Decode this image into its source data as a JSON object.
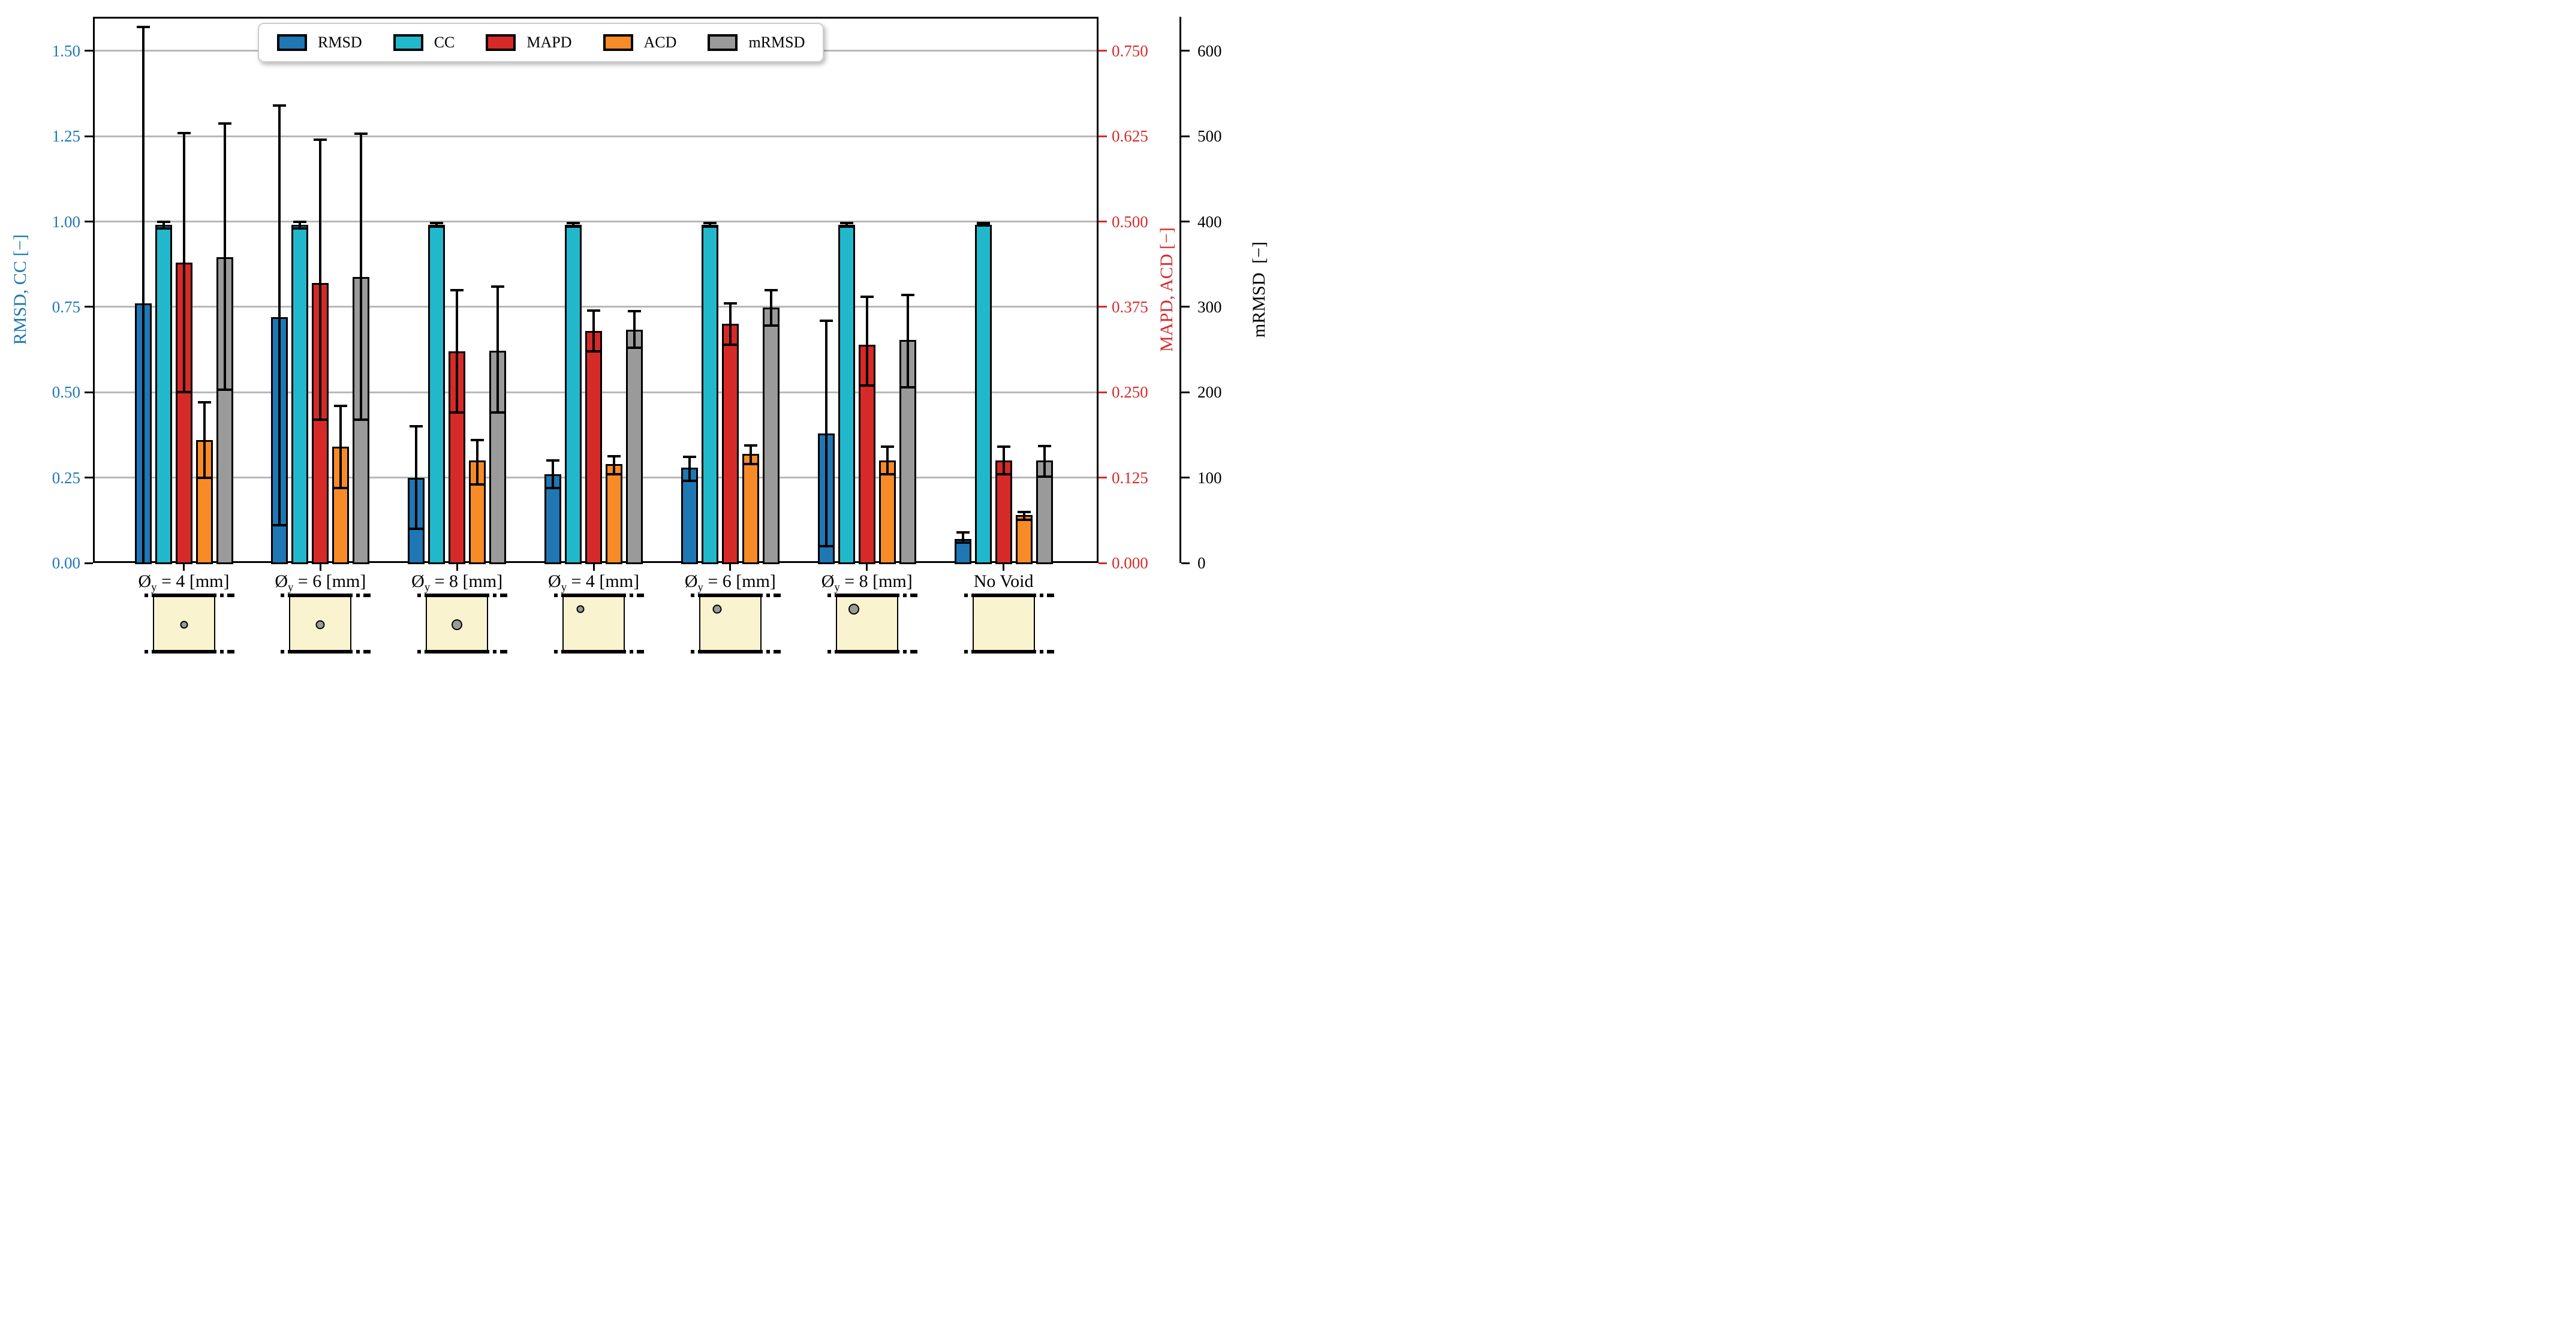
{
  "figure": {
    "background": "#ffffff",
    "description": "Grouped bar chart with error bars comparing reconstruction metrics for specimens with voids of different diameters and positions"
  },
  "legend": {
    "items": [
      {
        "label": "RMSD",
        "color": "#1f77b4"
      },
      {
        "label": "CC",
        "color": "#22b8cc"
      },
      {
        "label": "MAPD",
        "color": "#d62a28"
      },
      {
        "label": "ACD",
        "color": "#f78b28"
      },
      {
        "label": "mRMSD",
        "color": "#9a9a9a"
      }
    ]
  },
  "specimen_diagrams": {
    "fill_color": "#faf3d0",
    "void_color": "#9a9a9a",
    "items": [
      {
        "void_position": "middle",
        "void_diameter_mm": 4
      },
      {
        "void_position": "middle",
        "void_diameter_mm": 6
      },
      {
        "void_position": "middle",
        "void_diameter_mm": 8
      },
      {
        "void_position": "top",
        "void_diameter_mm": 4
      },
      {
        "void_position": "top",
        "void_diameter_mm": 6
      },
      {
        "void_position": "top",
        "void_diameter_mm": 8
      },
      {
        "void_position": "none",
        "void_diameter_mm": 0
      }
    ]
  },
  "chart_data": {
    "type": "bar",
    "title": "",
    "grid": true,
    "legend_position": "top-center",
    "categories": [
      {
        "prefix": "Ø",
        "sub": "y",
        "rest": " = 4 [mm]"
      },
      {
        "prefix": "Ø",
        "sub": "y",
        "rest": " = 6 [mm]"
      },
      {
        "prefix": "Ø",
        "sub": "y",
        "rest": " = 8 [mm]"
      },
      {
        "prefix": "Ø",
        "sub": "y",
        "rest": " = 4 [mm]"
      },
      {
        "prefix": "Ø",
        "sub": "y",
        "rest": " = 6 [mm]"
      },
      {
        "prefix": "Ø",
        "sub": "y",
        "rest": " = 8 [mm]"
      },
      {
        "prefix": "No Void",
        "sub": "",
        "rest": ""
      }
    ],
    "axes": {
      "left": {
        "label": "RMSD, CC [−]",
        "color": "#1f77b4",
        "ticks": [
          0.0,
          0.25,
          0.5,
          0.75,
          1.0,
          1.25,
          1.5
        ],
        "max": 1.6,
        "tick_decimals": 2
      },
      "right": {
        "label": "MAPD, ACD [−]",
        "color": "#d62b2b",
        "ticks": [
          0.0,
          0.125,
          0.25,
          0.375,
          0.5,
          0.625,
          0.75
        ],
        "max": 0.8,
        "tick_decimals": 3
      },
      "far_right": {
        "label": "mRMSD  [−]",
        "color": "#000000",
        "ticks": [
          0,
          100,
          200,
          300,
          400,
          500,
          600
        ],
        "max": 640,
        "tick_decimals": 0
      }
    },
    "series": [
      {
        "name": "RMSD",
        "axis": "left",
        "color": "#1f77b4",
        "values": [
          0.76,
          0.72,
          0.25,
          0.26,
          0.28,
          0.38,
          0.07
        ],
        "err_lo": [
          0.0,
          0.11,
          0.1,
          0.22,
          0.24,
          0.05,
          0.06
        ],
        "err_hi": [
          1.57,
          1.34,
          0.4,
          0.3,
          0.31,
          0.71,
          0.09
        ]
      },
      {
        "name": "CC",
        "axis": "left",
        "color": "#22b8cc",
        "values": [
          0.99,
          0.99,
          0.99,
          0.99,
          0.99,
          0.99,
          0.99
        ],
        "err_lo": [
          0.98,
          0.98,
          0.985,
          0.985,
          0.985,
          0.985,
          0.988
        ],
        "err_hi": [
          1.0,
          1.0,
          0.995,
          0.996,
          0.996,
          0.995,
          0.995
        ]
      },
      {
        "name": "MAPD",
        "axis": "right",
        "color": "#d62a28",
        "values": [
          0.44,
          0.41,
          0.31,
          0.34,
          0.35,
          0.32,
          0.15
        ],
        "err_lo": [
          0.25,
          0.21,
          0.22,
          0.31,
          0.32,
          0.26,
          0.13
        ],
        "err_hi": [
          0.63,
          0.62,
          0.4,
          0.37,
          0.38,
          0.39,
          0.17
        ]
      },
      {
        "name": "ACD",
        "axis": "right",
        "color": "#f78b28",
        "values": [
          0.18,
          0.17,
          0.15,
          0.145,
          0.16,
          0.15,
          0.07
        ],
        "err_lo": [
          0.125,
          0.11,
          0.115,
          0.13,
          0.145,
          0.13,
          0.063
        ],
        "err_hi": [
          0.235,
          0.23,
          0.18,
          0.156,
          0.172,
          0.17,
          0.075
        ]
      },
      {
        "name": "mRMSD",
        "axis": "far_right",
        "color": "#9a9a9a",
        "values": [
          358,
          335,
          249,
          273,
          299,
          261,
          120
        ],
        "err_lo": [
          203,
          168,
          176,
          252,
          278,
          206,
          101
        ],
        "err_hi": [
          515,
          503,
          324,
          295,
          320,
          314,
          137
        ]
      }
    ]
  }
}
